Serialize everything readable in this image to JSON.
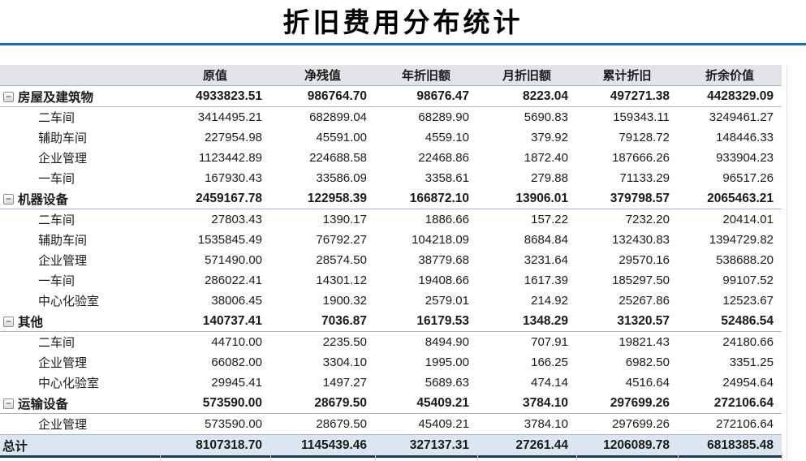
{
  "title": "折旧费用分布统计",
  "icons": {
    "collapse": "−"
  },
  "colors": {
    "accent_rule_blue": "#1a70b8",
    "header_row_bg": "#e3e4e8",
    "total_row_bg": "#dce6f1",
    "total_bottom_border": "#17375d",
    "group_separator": "#9eb6ce",
    "faint_gridline": "#d6d6d6"
  },
  "table": {
    "row_label_header": "",
    "columns": [
      "原值",
      "净残值",
      "年折旧额",
      "月折旧额",
      "累计折旧",
      "折余价值"
    ],
    "groups": [
      {
        "label": "房屋及建筑物",
        "values": [
          "4933823.51",
          "986764.70",
          "98676.47",
          "8223.04",
          "497271.38",
          "4428329.09"
        ],
        "children": [
          {
            "label": "二车间",
            "values": [
              "3414495.21",
              "682899.04",
              "68289.90",
              "5690.83",
              "159343.11",
              "3249461.27"
            ]
          },
          {
            "label": "辅助车间",
            "values": [
              "227954.98",
              "45591.00",
              "4559.10",
              "379.92",
              "79128.72",
              "148446.33"
            ]
          },
          {
            "label": "企业管理",
            "values": [
              "1123442.89",
              "224688.58",
              "22468.86",
              "1872.40",
              "187666.26",
              "933904.23"
            ]
          },
          {
            "label": "一车间",
            "values": [
              "167930.43",
              "33586.09",
              "3358.61",
              "279.88",
              "71133.29",
              "96517.26"
            ]
          }
        ]
      },
      {
        "label": "机器设备",
        "values": [
          "2459167.78",
          "122958.39",
          "166872.10",
          "13906.01",
          "379798.57",
          "2065463.21"
        ],
        "children": [
          {
            "label": "二车间",
            "values": [
              "27803.43",
              "1390.17",
              "1886.66",
              "157.22",
              "7232.20",
              "20414.01"
            ]
          },
          {
            "label": "辅助车间",
            "values": [
              "1535845.49",
              "76792.27",
              "104218.09",
              "8684.84",
              "132430.83",
              "1394729.82"
            ]
          },
          {
            "label": "企业管理",
            "values": [
              "571490.00",
              "28574.50",
              "38779.68",
              "3231.64",
              "29570.16",
              "538688.20"
            ]
          },
          {
            "label": "一车间",
            "values": [
              "286022.41",
              "14301.12",
              "19408.66",
              "1617.39",
              "185297.50",
              "99107.52"
            ]
          },
          {
            "label": "中心化验室",
            "values": [
              "38006.45",
              "1900.32",
              "2579.01",
              "214.92",
              "25267.86",
              "12523.67"
            ]
          }
        ]
      },
      {
        "label": "其他",
        "values": [
          "140737.41",
          "7036.87",
          "16179.53",
          "1348.29",
          "31320.57",
          "52486.54"
        ],
        "children": [
          {
            "label": "二车间",
            "values": [
              "44710.00",
              "2235.50",
              "8494.90",
              "707.91",
              "19821.43",
              "24180.66"
            ]
          },
          {
            "label": "企业管理",
            "values": [
              "66082.00",
              "3304.10",
              "1995.00",
              "166.25",
              "6982.50",
              "3351.25"
            ]
          },
          {
            "label": "中心化验室",
            "values": [
              "29945.41",
              "1497.27",
              "5689.63",
              "474.14",
              "4516.64",
              "24954.64"
            ]
          }
        ]
      },
      {
        "label": "运输设备",
        "values": [
          "573590.00",
          "28679.50",
          "45409.21",
          "3784.10",
          "297699.26",
          "272106.64"
        ],
        "children": [
          {
            "label": "企业管理",
            "values": [
              "573590.00",
              "28679.50",
              "45409.21",
              "3784.10",
              "297699.26",
              "272106.64"
            ]
          }
        ]
      }
    ],
    "total": {
      "label": "总计",
      "values": [
        "8107318.70",
        "1145439.46",
        "327137.31",
        "27261.44",
        "1206089.78",
        "6818385.48"
      ]
    }
  }
}
